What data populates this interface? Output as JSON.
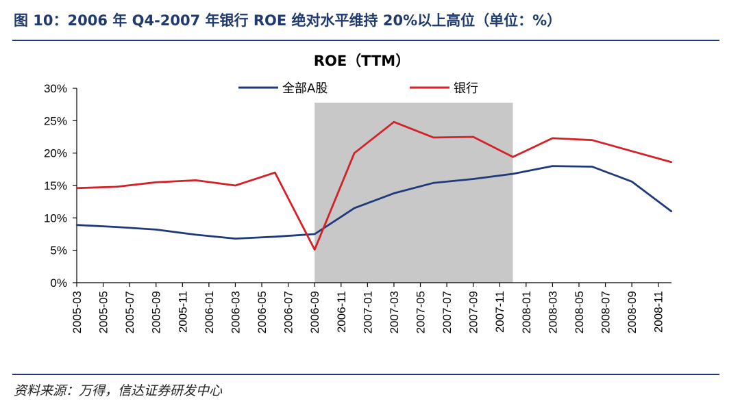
{
  "figure_title": "图 10：2006 年 Q4-2007 年银行 ROE 绝对水平维持 20%以上高位（单位：%）",
  "source_note": "资料来源：万得，信达证券研发中心",
  "colors": {
    "series_all_a": "#1f3a7a",
    "series_banks": "#d42128",
    "shade": "#c8c8c8",
    "rule": "#1f3a6e"
  },
  "chart_data": {
    "type": "line",
    "title": "ROE（TTM）",
    "xlabel": "",
    "ylabel": "",
    "ylim": [
      0,
      30
    ],
    "yticks": [
      "0%",
      "5%",
      "10%",
      "15%",
      "20%",
      "25%",
      "30%"
    ],
    "y_tick_values": [
      0,
      5,
      10,
      15,
      20,
      25,
      30
    ],
    "x_tick_labels": [
      "2005-03",
      "2005-05",
      "2005-07",
      "2005-09",
      "2005-11",
      "2006-01",
      "2006-03",
      "2006-05",
      "2006-07",
      "2006-09",
      "2006-11",
      "2007-01",
      "2007-03",
      "2007-05",
      "2007-07",
      "2007-09",
      "2007-11",
      "2008-01",
      "2008-03",
      "2008-05",
      "2008-07",
      "2008-09",
      "2008-11"
    ],
    "grid": false,
    "legend_position": "top-center",
    "shaded_range": [
      "2006-09",
      "2007-12"
    ],
    "series": [
      {
        "name": "全部A股",
        "x": [
          "2005-03",
          "2005-06",
          "2005-09",
          "2005-12",
          "2006-03",
          "2006-06",
          "2006-09",
          "2006-12",
          "2007-03",
          "2007-06",
          "2007-09",
          "2007-12",
          "2008-03",
          "2008-06",
          "2008-09",
          "2008-12"
        ],
        "values": [
          8.9,
          8.6,
          8.2,
          7.4,
          6.8,
          7.1,
          7.5,
          11.5,
          13.8,
          15.4,
          16.0,
          16.8,
          18.0,
          17.9,
          15.6,
          11.0
        ]
      },
      {
        "name": "银行",
        "x": [
          "2005-03",
          "2005-06",
          "2005-09",
          "2005-12",
          "2006-03",
          "2006-06",
          "2006-09",
          "2006-12",
          "2007-03",
          "2007-06",
          "2007-09",
          "2007-12",
          "2008-03",
          "2008-06",
          "2008-09",
          "2008-12"
        ],
        "values": [
          14.6,
          14.8,
          15.5,
          15.8,
          15.0,
          17.0,
          5.1,
          20.0,
          24.8,
          22.4,
          22.5,
          19.4,
          22.3,
          22.0,
          20.3,
          18.6
        ]
      }
    ]
  }
}
